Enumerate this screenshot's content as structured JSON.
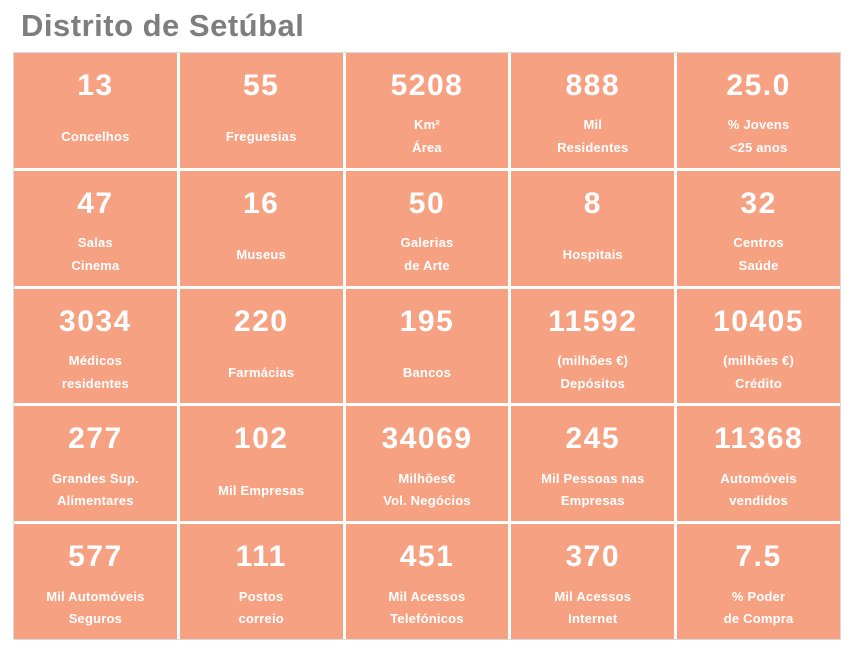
{
  "page": {
    "title": "Distrito de Setúbal"
  },
  "colors": {
    "tile_background": "#F7A183",
    "tile_text": "#FFFFFF",
    "title_text": "#7E7E7E",
    "page_background": "#FFFFFF",
    "grid_border": "#D9D9D9"
  },
  "grid": {
    "rows": [
      {
        "cells": [
          {
            "value": "13",
            "label1": "Concelhos",
            "label2": ""
          },
          {
            "value": "55",
            "label1": "Freguesias",
            "label2": ""
          },
          {
            "value": "5208",
            "label1": "Km²",
            "label2": "Área"
          },
          {
            "value": "888",
            "label1": "Mil",
            "label2": "Residentes"
          },
          {
            "value": "25.0",
            "label1": "% Jovens",
            "label2": "<25 anos"
          }
        ]
      },
      {
        "cells": [
          {
            "value": "47",
            "label1": "Salas",
            "label2": "Cinema"
          },
          {
            "value": "16",
            "label1": "Museus",
            "label2": ""
          },
          {
            "value": "50",
            "label1": "Galerias",
            "label2": "de Arte"
          },
          {
            "value": "8",
            "label1": "Hospitais",
            "label2": ""
          },
          {
            "value": "32",
            "label1": "Centros",
            "label2": "Saúde"
          }
        ]
      },
      {
        "cells": [
          {
            "value": "3034",
            "label1": "Médicos",
            "label2": "residentes"
          },
          {
            "value": "220",
            "label1": "Farmácias",
            "label2": ""
          },
          {
            "value": "195",
            "label1": "Bancos",
            "label2": ""
          },
          {
            "value": "11592",
            "label1": "(milhões €)",
            "label2": "Depósitos"
          },
          {
            "value": "10405",
            "label1": "(milhões €)",
            "label2": "Crédito"
          }
        ]
      },
      {
        "cells": [
          {
            "value": "277",
            "label1": "Grandes Sup.",
            "label2": "Alimentares"
          },
          {
            "value": "102",
            "label1": "Mil Empresas",
            "label2": ""
          },
          {
            "value": "34069",
            "label1": "Milhões€",
            "label2": "Vol. Negócios"
          },
          {
            "value": "245",
            "label1": "Mil Pessoas nas",
            "label2": "Empresas"
          },
          {
            "value": "11368",
            "label1": "Automóveis",
            "label2": "vendidos"
          }
        ]
      },
      {
        "cells": [
          {
            "value": "577",
            "label1": "Mil Automóveis",
            "label2": "Seguros"
          },
          {
            "value": "111",
            "label1": "Postos",
            "label2": "correio"
          },
          {
            "value": "451",
            "label1": "Mil Acessos",
            "label2": "Telefónicos"
          },
          {
            "value": "370",
            "label1": "Mil Acessos",
            "label2": "Internet"
          },
          {
            "value": "7.5",
            "label1": "% Poder",
            "label2": "de Compra"
          }
        ]
      }
    ]
  },
  "chart_data": {
    "type": "table",
    "title": "Distrito de Setúbal",
    "items": [
      {
        "value": 13,
        "label": "Concelhos"
      },
      {
        "value": 55,
        "label": "Freguesias"
      },
      {
        "value": 5208,
        "label": "Km² Área"
      },
      {
        "value": 888,
        "label": "Mil Residentes"
      },
      {
        "value": 25.0,
        "label": "% Jovens <25 anos"
      },
      {
        "value": 47,
        "label": "Salas Cinema"
      },
      {
        "value": 16,
        "label": "Museus"
      },
      {
        "value": 50,
        "label": "Galerias de Arte"
      },
      {
        "value": 8,
        "label": "Hospitais"
      },
      {
        "value": 32,
        "label": "Centros Saúde"
      },
      {
        "value": 3034,
        "label": "Médicos residentes"
      },
      {
        "value": 220,
        "label": "Farmácias"
      },
      {
        "value": 195,
        "label": "Bancos"
      },
      {
        "value": 11592,
        "label": "(milhões €) Depósitos"
      },
      {
        "value": 10405,
        "label": "(milhões €) Crédito"
      },
      {
        "value": 277,
        "label": "Grandes Sup. Alimentares"
      },
      {
        "value": 102,
        "label": "Mil Empresas"
      },
      {
        "value": 34069,
        "label": "Milhões€ Vol. Negócios"
      },
      {
        "value": 245,
        "label": "Mil Pessoas nas Empresas"
      },
      {
        "value": 11368,
        "label": "Automóveis vendidos"
      },
      {
        "value": 577,
        "label": "Mil Automóveis Seguros"
      },
      {
        "value": 111,
        "label": "Postos correio"
      },
      {
        "value": 451,
        "label": "Mil Acessos Telefónicos"
      },
      {
        "value": 370,
        "label": "Mil Acessos Internet"
      },
      {
        "value": 7.5,
        "label": "% Poder de Compra"
      }
    ]
  }
}
